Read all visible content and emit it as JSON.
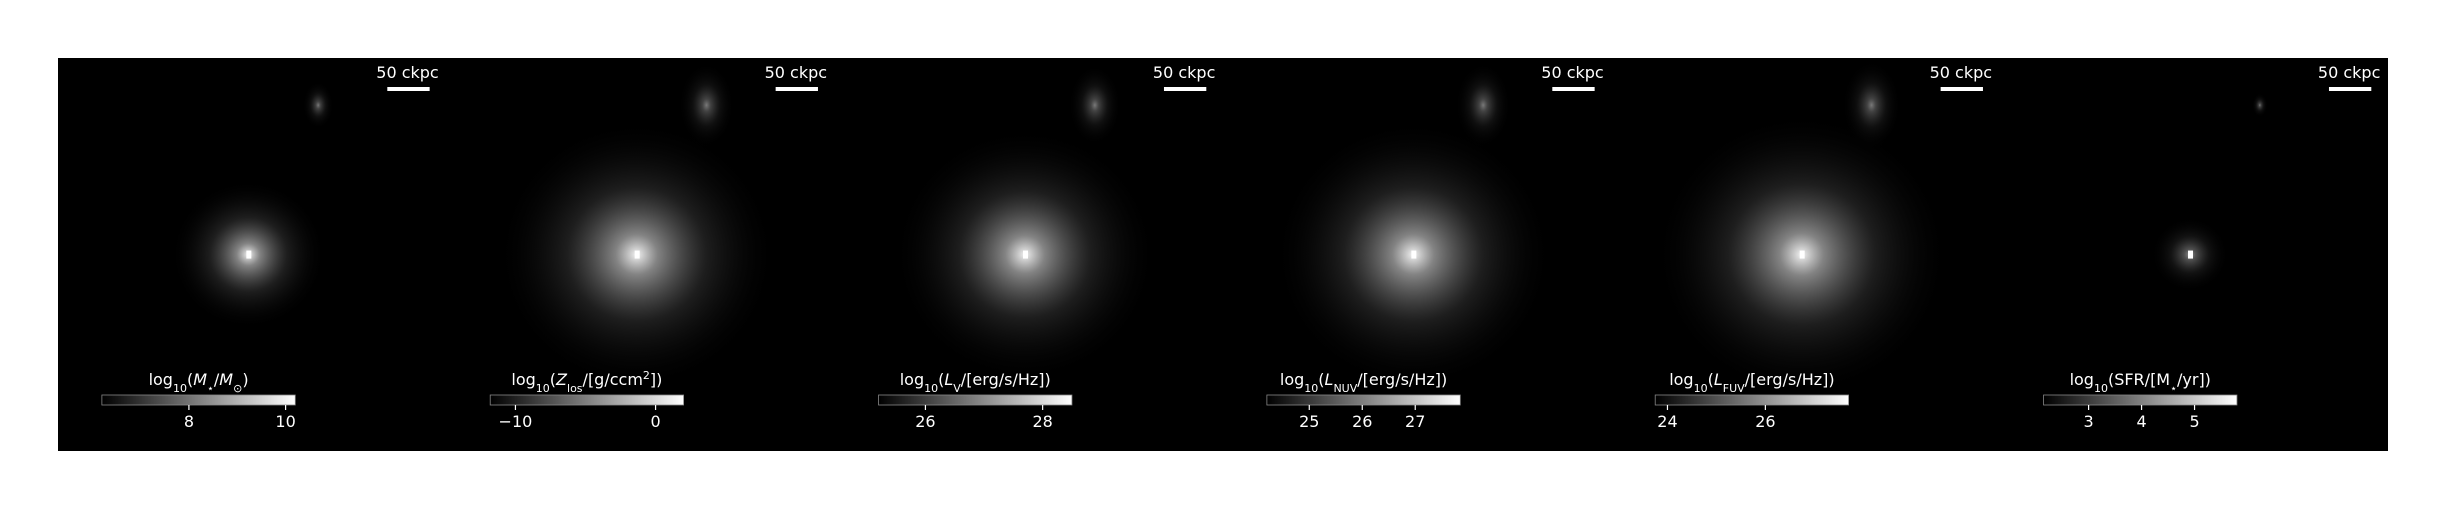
{
  "chart_data": [
    {
      "type": "heatmap",
      "scale_bar": "50 ckpc",
      "clim": [
        6.2,
        10.2
      ],
      "cticks": [
        8,
        10
      ],
      "colorbar_label": [
        {
          "text": "log"
        },
        {
          "text": "10",
          "style": "sub"
        },
        {
          "text": "("
        },
        {
          "text": "M",
          "style": "italic"
        },
        {
          "text": "⋆",
          "style": "sub"
        },
        {
          "text": "/"
        },
        {
          "text": "M",
          "style": "italic"
        },
        {
          "text": "⊙",
          "style": "sub"
        },
        {
          "text": ")"
        }
      ]
    },
    {
      "type": "heatmap",
      "scale_bar": "50 ckpc",
      "clim": [
        -11.8,
        2.0
      ],
      "cticks": [
        {
          "value": -10,
          "label": "−10"
        },
        0
      ],
      "colorbar_label": [
        {
          "text": "log"
        },
        {
          "text": "10",
          "style": "sub"
        },
        {
          "text": "("
        },
        {
          "text": "Z",
          "style": "italic"
        },
        {
          "text": "los",
          "style": "sub"
        },
        {
          "text": "/[g/ccm"
        },
        {
          "text": "2",
          "style": "sup"
        },
        {
          "text": "])"
        }
      ]
    },
    {
      "type": "heatmap",
      "scale_bar": "50 ckpc",
      "clim": [
        25.2,
        28.5
      ],
      "cticks": [
        26,
        28
      ],
      "colorbar_label": [
        {
          "text": "log"
        },
        {
          "text": "10",
          "style": "sub"
        },
        {
          "text": "("
        },
        {
          "text": "L",
          "style": "italic"
        },
        {
          "text": "V",
          "style": "sub"
        },
        {
          "text": "/[erg/s/Hz])"
        }
      ]
    },
    {
      "type": "heatmap",
      "scale_bar": "50 ckpc",
      "clim": [
        24.2,
        27.85
      ],
      "cticks": [
        25,
        26,
        27
      ],
      "colorbar_label": [
        {
          "text": "log"
        },
        {
          "text": "10",
          "style": "sub"
        },
        {
          "text": "("
        },
        {
          "text": "L",
          "style": "italic"
        },
        {
          "text": "NUV",
          "style": "sub"
        },
        {
          "text": "/[erg/s/Hz])"
        }
      ]
    },
    {
      "type": "heatmap",
      "scale_bar": "50 ckpc",
      "clim": [
        23.75,
        27.7
      ],
      "cticks": [
        24,
        26
      ],
      "colorbar_label": [
        {
          "text": "log"
        },
        {
          "text": "10",
          "style": "sub"
        },
        {
          "text": "("
        },
        {
          "text": "L",
          "style": "italic"
        },
        {
          "text": "FUV",
          "style": "sub"
        },
        {
          "text": "/[erg/s/Hz])"
        }
      ]
    },
    {
      "type": "heatmap",
      "scale_bar": "50 ckpc",
      "clim": [
        2.15,
        5.8
      ],
      "cticks": [
        3,
        4,
        5
      ],
      "colorbar_label": [
        {
          "text": "log"
        },
        {
          "text": "10",
          "style": "sub"
        },
        {
          "text": "(SFR/[M"
        },
        {
          "text": "⋆",
          "style": "sub"
        },
        {
          "text": "/yr])"
        }
      ]
    }
  ]
}
